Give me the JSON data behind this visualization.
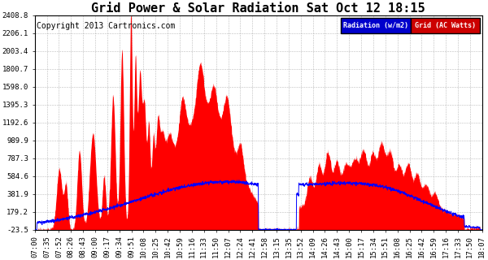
{
  "title": "Grid Power & Solar Radiation Sat Oct 12 18:15",
  "copyright": "Copyright 2013 Cartronics.com",
  "legend_labels": [
    "Radiation (w/m2)",
    "Grid (AC Watts)"
  ],
  "yticks": [
    -23.5,
    179.2,
    381.9,
    584.6,
    787.3,
    989.9,
    1192.6,
    1395.3,
    1598.0,
    1800.7,
    2003.4,
    2206.1,
    2408.8
  ],
  "xtick_labels": [
    "07:00",
    "07:35",
    "07:52",
    "08:26",
    "08:43",
    "09:00",
    "09:17",
    "09:34",
    "09:51",
    "10:08",
    "10:25",
    "10:42",
    "10:59",
    "11:16",
    "11:33",
    "11:50",
    "12:07",
    "12:24",
    "12:41",
    "12:58",
    "13:15",
    "13:35",
    "13:52",
    "14:09",
    "14:26",
    "14:43",
    "15:00",
    "15:17",
    "15:34",
    "15:51",
    "16:08",
    "16:25",
    "16:42",
    "16:59",
    "17:16",
    "17:33",
    "17:50",
    "18:07"
  ],
  "ymin": -23.5,
  "ymax": 2408.8,
  "background_color": "#ffffff",
  "grid_color": "#aaaaaa",
  "area_color": "#ff0000",
  "line_color": "#0000ff",
  "title_fontsize": 11,
  "copyright_fontsize": 7,
  "tick_fontsize": 6.5
}
